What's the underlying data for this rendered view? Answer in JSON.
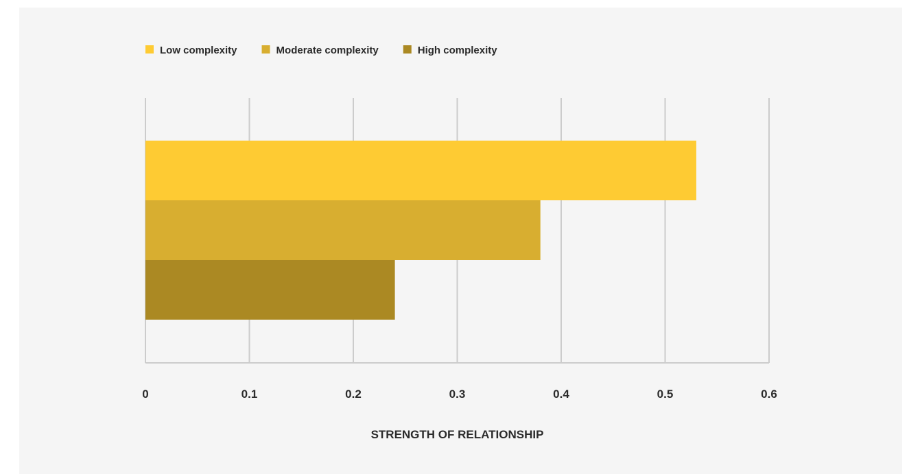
{
  "chart_data": {
    "type": "bar",
    "orientation": "horizontal",
    "title": "",
    "xlabel": "STRENGTH OF RELATIONSHIP",
    "ylabel": "",
    "xlim": [
      0,
      0.6
    ],
    "x_ticks": [
      "0",
      "0.1",
      "0.2",
      "0.3",
      "0.4",
      "0.5",
      "0.6"
    ],
    "grid": true,
    "legend_position": "top-left",
    "series": [
      {
        "name": "Low complexity",
        "value": 0.53,
        "color": "#fecb33"
      },
      {
        "name": "Moderate complexity",
        "value": 0.38,
        "color": "#d8ae30"
      },
      {
        "name": "High complexity",
        "value": 0.24,
        "color": "#ab8923"
      }
    ]
  },
  "colors": {
    "panel_background": "#f5f5f5",
    "gridline": "#cccccc",
    "text": "#2b2b2b"
  }
}
